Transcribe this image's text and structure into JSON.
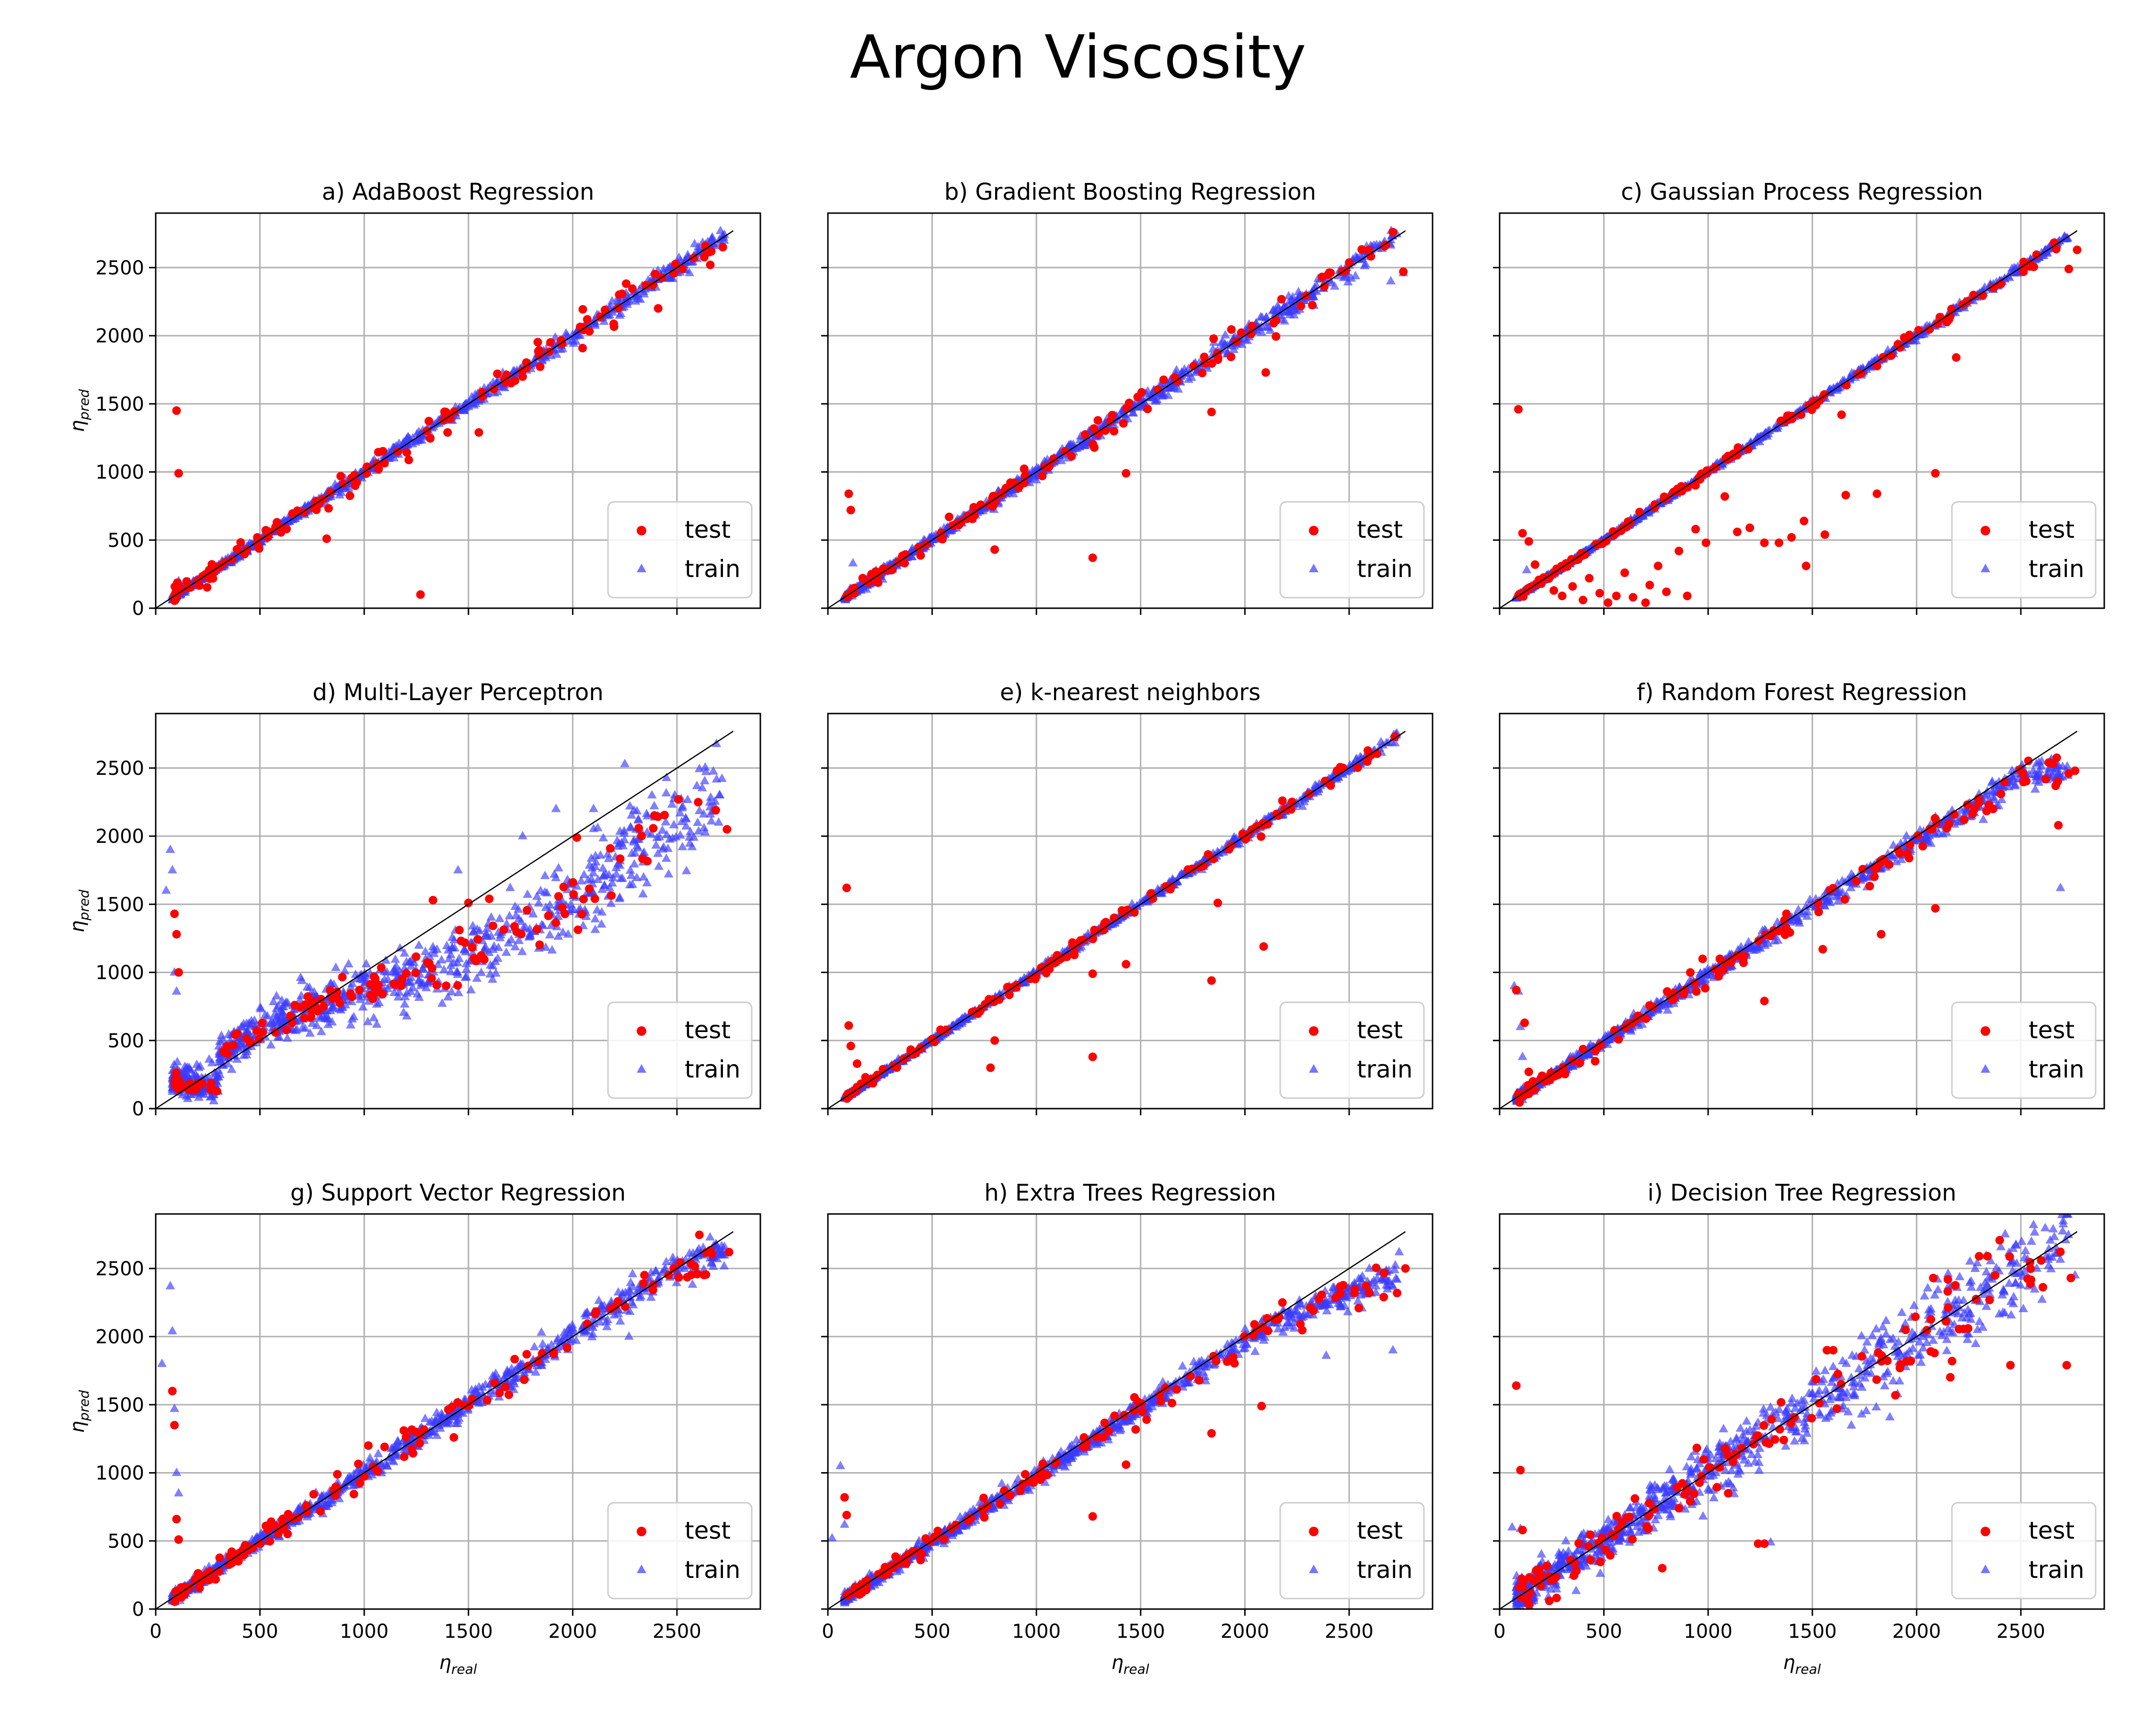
{
  "figure_title": "Argon Viscosity",
  "legend_labels": {
    "test": "test",
    "train": "train"
  },
  "colors": {
    "test": "#ff0000",
    "train": "#3b3bff",
    "grid": "#b0b0b0",
    "identity": "#000000"
  },
  "axis_labels": {
    "x_main": "η",
    "x_sub": "real",
    "y_main": "η",
    "y_sub": "pred"
  },
  "chart_data": [
    {
      "type": "scatter",
      "title": "a) AdaBoost Regression",
      "xlim": [
        0,
        2900
      ],
      "ylim": [
        0,
        2900
      ],
      "xticks": [
        0,
        500,
        1000,
        1500,
        2000,
        2500
      ],
      "yticks": [
        0,
        500,
        1000,
        1500,
        2000,
        2500
      ],
      "legend": "bottom-right",
      "grid": true,
      "identity_line": [
        0,
        2770
      ],
      "show_xticklabels": false,
      "show_yticklabels": true,
      "test_pattern": {
        "noise": 60,
        "outliers": [
          [
            100,
            1450
          ],
          [
            110,
            990
          ],
          [
            1270,
            100
          ],
          [
            1400,
            1290
          ],
          [
            1550,
            1290
          ],
          [
            1760,
            1700
          ],
          [
            820,
            510
          ],
          [
            2720,
            2650
          ],
          [
            2660,
            2520
          ],
          [
            2580,
            2570
          ],
          [
            2350,
            2370
          ],
          [
            2070,
            2120
          ],
          [
            1300,
            1300
          ]
        ]
      },
      "train_pattern": {
        "noise": 25,
        "outliers": [
          [
            110,
            200
          ],
          [
            2560,
            2460
          ],
          [
            2620,
            2600
          ]
        ]
      }
    },
    {
      "type": "scatter",
      "title": "b) Gradient Boosting Regression",
      "xlim": [
        0,
        2900
      ],
      "ylim": [
        0,
        2900
      ],
      "xticks": [
        0,
        500,
        1000,
        1500,
        2000,
        2500
      ],
      "yticks": [
        0,
        500,
        1000,
        1500,
        2000,
        2500
      ],
      "legend": "bottom-right",
      "grid": true,
      "identity_line": [
        0,
        2770
      ],
      "show_xticklabels": false,
      "show_yticklabels": false,
      "test_pattern": {
        "noise": 45,
        "outliers": [
          [
            100,
            840
          ],
          [
            110,
            720
          ],
          [
            1270,
            370
          ],
          [
            1430,
            990
          ],
          [
            1840,
            1440
          ],
          [
            2100,
            1730
          ],
          [
            2710,
            2760
          ],
          [
            2760,
            2470
          ],
          [
            800,
            430
          ]
        ]
      },
      "train_pattern": {
        "noise": 30,
        "outliers": [
          [
            2760,
            2460
          ],
          [
            2700,
            2400
          ],
          [
            120,
            330
          ]
        ]
      }
    },
    {
      "type": "scatter",
      "title": "c) Gaussian Process Regression",
      "xlim": [
        0,
        2900
      ],
      "ylim": [
        0,
        2900
      ],
      "xticks": [
        0,
        500,
        1000,
        1500,
        2000,
        2500
      ],
      "yticks": [
        0,
        500,
        1000,
        1500,
        2000,
        2500
      ],
      "legend": "bottom-right",
      "grid": true,
      "identity_line": [
        0,
        2770
      ],
      "show_xticklabels": false,
      "show_yticklabels": false,
      "test_pattern": {
        "noise": 20,
        "outliers": [
          [
            90,
            1460
          ],
          [
            110,
            550
          ],
          [
            140,
            490
          ],
          [
            170,
            320
          ],
          [
            200,
            180
          ],
          [
            260,
            130
          ],
          [
            300,
            90
          ],
          [
            350,
            160
          ],
          [
            400,
            60
          ],
          [
            430,
            220
          ],
          [
            480,
            110
          ],
          [
            520,
            40
          ],
          [
            560,
            90
          ],
          [
            600,
            260
          ],
          [
            640,
            80
          ],
          [
            700,
            40
          ],
          [
            720,
            170
          ],
          [
            760,
            310
          ],
          [
            800,
            120
          ],
          [
            860,
            420
          ],
          [
            900,
            90
          ],
          [
            940,
            580
          ],
          [
            990,
            480
          ],
          [
            1080,
            820
          ],
          [
            1140,
            560
          ],
          [
            1200,
            590
          ],
          [
            1270,
            480
          ],
          [
            1340,
            480
          ],
          [
            1400,
            520
          ],
          [
            1460,
            640
          ],
          [
            1470,
            310
          ],
          [
            1560,
            540
          ],
          [
            1640,
            1420
          ],
          [
            1660,
            830
          ],
          [
            1810,
            840
          ],
          [
            1960,
            1980
          ],
          [
            2090,
            990
          ],
          [
            2160,
            2140
          ],
          [
            2190,
            1840
          ],
          [
            2730,
            2490
          ],
          [
            2770,
            2630
          ]
        ]
      },
      "train_pattern": {
        "noise": 12,
        "outliers": [
          [
            130,
            280
          ]
        ]
      }
    },
    {
      "type": "scatter",
      "title": "d) Multi-Layer Perceptron",
      "xlim": [
        0,
        2900
      ],
      "ylim": [
        0,
        2900
      ],
      "xticks": [
        0,
        500,
        1000,
        1500,
        2000,
        2500
      ],
      "yticks": [
        0,
        500,
        1000,
        1500,
        2000,
        2500
      ],
      "legend": "bottom-right",
      "grid": true,
      "identity_line": [
        0,
        2770
      ],
      "show_xticklabels": false,
      "show_yticklabels": true,
      "test_pattern": {
        "noise": 80,
        "outliers": [
          [
            90,
            1430
          ],
          [
            100,
            1280
          ],
          [
            110,
            1000
          ],
          [
            1330,
            1530
          ],
          [
            1500,
            1510
          ],
          [
            1600,
            1540
          ],
          [
            2020,
            1990
          ],
          [
            2180,
            1910
          ],
          [
            2330,
            2000
          ],
          [
            2740,
            2050
          ]
        ]
      },
      "train_pattern": {
        "noise": 130,
        "outliers": [
          [
            50,
            1600
          ],
          [
            70,
            1900
          ],
          [
            80,
            1750
          ],
          [
            90,
            1000
          ],
          [
            100,
            860
          ],
          [
            1450,
            1750
          ],
          [
            1700,
            1620
          ],
          [
            1760,
            2000
          ],
          [
            1920,
            2200
          ],
          [
            2100,
            2200
          ],
          [
            2120,
            2060
          ],
          [
            2250,
            2530
          ],
          [
            2380,
            2300
          ],
          [
            2460,
            1720
          ],
          [
            2560,
            1990
          ],
          [
            2660,
            2160
          ],
          [
            2700,
            2100
          ]
        ]
      }
    },
    {
      "type": "scatter",
      "title": "e) k-nearest neighbors",
      "xlim": [
        0,
        2900
      ],
      "ylim": [
        0,
        2900
      ],
      "xticks": [
        0,
        500,
        1000,
        1500,
        2000,
        2500
      ],
      "yticks": [
        0,
        500,
        1000,
        1500,
        2000,
        2500
      ],
      "legend": "bottom-right",
      "grid": true,
      "identity_line": [
        0,
        2770
      ],
      "show_xticklabels": false,
      "show_yticklabels": false,
      "test_pattern": {
        "noise": 25,
        "outliers": [
          [
            90,
            1620
          ],
          [
            100,
            610
          ],
          [
            110,
            460
          ],
          [
            140,
            330
          ],
          [
            180,
            230
          ],
          [
            780,
            300
          ],
          [
            800,
            500
          ],
          [
            1270,
            380
          ],
          [
            1270,
            990
          ],
          [
            1430,
            1060
          ],
          [
            1470,
            1440
          ],
          [
            1550,
            1580
          ],
          [
            1840,
            940
          ],
          [
            1870,
            1510
          ],
          [
            2090,
            1190
          ],
          [
            2180,
            2260
          ],
          [
            2720,
            2730
          ]
        ]
      },
      "train_pattern": {
        "noise": 14,
        "outliers": []
      }
    },
    {
      "type": "scatter",
      "title": "f) Random Forest Regression",
      "xlim": [
        0,
        2900
      ],
      "ylim": [
        0,
        2900
      ],
      "xticks": [
        0,
        500,
        1000,
        1500,
        2000,
        2500
      ],
      "yticks": [
        0,
        500,
        1000,
        1500,
        2000,
        2500
      ],
      "legend": "bottom-right",
      "grid": true,
      "identity_line": [
        0,
        2770
      ],
      "show_xticklabels": false,
      "show_yticklabels": false,
      "test_pattern": {
        "noise": 50,
        "outliers": [
          [
            80,
            870
          ],
          [
            120,
            630
          ],
          [
            140,
            270
          ],
          [
            160,
            200
          ],
          [
            1270,
            790
          ],
          [
            1550,
            1170
          ],
          [
            1830,
            1280
          ],
          [
            2090,
            1470
          ],
          [
            2680,
            2080
          ],
          [
            2730,
            2460
          ],
          [
            2760,
            2480
          ]
        ]
      },
      "train_pattern": {
        "noise": 35,
        "outliers": [
          [
            70,
            900
          ],
          [
            90,
            860
          ],
          [
            100,
            600
          ],
          [
            110,
            380
          ],
          [
            2320,
            2120
          ],
          [
            2560,
            2480
          ],
          [
            2690,
            1620
          ],
          [
            2700,
            2510
          ]
        ]
      }
    },
    {
      "type": "scatter",
      "title": "g) Support Vector Regression",
      "xlim": [
        0,
        2900
      ],
      "ylim": [
        0,
        2900
      ],
      "xticks": [
        0,
        500,
        1000,
        1500,
        2000,
        2500
      ],
      "yticks": [
        0,
        500,
        1000,
        1500,
        2000,
        2500
      ],
      "legend": "bottom-right",
      "grid": true,
      "identity_line": [
        0,
        2770
      ],
      "show_xticklabels": true,
      "show_yticklabels": true,
      "test_pattern": {
        "noise": 60,
        "outliers": [
          [
            80,
            1600
          ],
          [
            90,
            1350
          ],
          [
            100,
            660
          ],
          [
            110,
            510
          ],
          [
            1020,
            1200
          ],
          [
            1270,
            1280
          ],
          [
            1430,
            1260
          ],
          [
            2340,
            2390
          ],
          [
            2750,
            2620
          ]
        ]
      },
      "train_pattern": {
        "noise": 45,
        "outliers": [
          [
            30,
            1800
          ],
          [
            70,
            2370
          ],
          [
            80,
            2040
          ],
          [
            90,
            1470
          ],
          [
            100,
            1000
          ],
          [
            110,
            850
          ],
          [
            1850,
            2030
          ],
          [
            2270,
            2000
          ],
          [
            2330,
            2380
          ],
          [
            2660,
            2610
          ]
        ]
      }
    },
    {
      "type": "scatter",
      "title": "h) Extra Trees Regression",
      "xlim": [
        0,
        2900
      ],
      "ylim": [
        0,
        2900
      ],
      "xticks": [
        0,
        500,
        1000,
        1500,
        2000,
        2500
      ],
      "yticks": [
        0,
        500,
        1000,
        1500,
        2000,
        2500
      ],
      "legend": "bottom-right",
      "grid": true,
      "identity_line": [
        0,
        2770
      ],
      "show_xticklabels": true,
      "show_yticklabels": false,
      "test_pattern": {
        "noise": 50,
        "outliers": [
          [
            80,
            820
          ],
          [
            90,
            690
          ],
          [
            1270,
            680
          ],
          [
            1430,
            1060
          ],
          [
            1840,
            1290
          ],
          [
            2080,
            1490
          ],
          [
            2180,
            2250
          ],
          [
            2730,
            2320
          ],
          [
            2770,
            2500
          ]
        ]
      },
      "train_pattern": {
        "noise": 40,
        "outliers": [
          [
            20,
            520
          ],
          [
            60,
            1050
          ],
          [
            80,
            620
          ],
          [
            2390,
            1860
          ],
          [
            2710,
            1900
          ],
          [
            2740,
            2620
          ]
        ]
      }
    },
    {
      "type": "scatter",
      "title": "i) Decision Tree Regression",
      "xlim": [
        0,
        2900
      ],
      "ylim": [
        0,
        2900
      ],
      "xticks": [
        0,
        500,
        1000,
        1500,
        2000,
        2500
      ],
      "yticks": [
        0,
        500,
        1000,
        1500,
        2000,
        2500
      ],
      "legend": "bottom-right",
      "grid": true,
      "identity_line": [
        0,
        2770
      ],
      "show_xticklabels": true,
      "show_yticklabels": false,
      "test_pattern": {
        "noise": 130,
        "outliers": [
          [
            80,
            1640
          ],
          [
            100,
            1020
          ],
          [
            110,
            580
          ],
          [
            780,
            300
          ],
          [
            1240,
            480
          ],
          [
            1270,
            480
          ],
          [
            1570,
            1900
          ],
          [
            1600,
            1900
          ],
          [
            2080,
            2430
          ],
          [
            2150,
            2420
          ],
          [
            2170,
            1820
          ],
          [
            2300,
            2590
          ],
          [
            2340,
            2590
          ],
          [
            2450,
            1790
          ],
          [
            2720,
            1790
          ],
          [
            2740,
            2430
          ]
        ]
      },
      "train_pattern": {
        "noise": 120,
        "outliers": [
          [
            60,
            600
          ],
          [
            100,
            590
          ],
          [
            1300,
            490
          ],
          [
            2100,
            2420
          ],
          [
            2360,
            2440
          ],
          [
            2500,
            2470
          ],
          [
            2650,
            2580
          ],
          [
            2760,
            2450
          ]
        ]
      }
    }
  ]
}
